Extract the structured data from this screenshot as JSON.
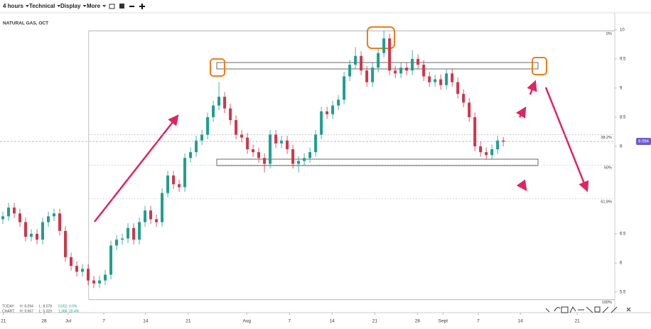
{
  "toolbar": {
    "items": [
      "4 hours",
      "Technical",
      "Display",
      "More"
    ]
  },
  "chart_data": {
    "type": "candlestick",
    "title": "NATURAL GAS, OCT",
    "ohlc": [
      [
        6.75,
        6.88,
        6.67,
        6.8
      ],
      [
        6.8,
        7.03,
        6.72,
        6.95
      ],
      [
        6.95,
        7.03,
        6.77,
        6.85
      ],
      [
        6.85,
        6.93,
        6.62,
        6.7
      ],
      [
        6.7,
        6.78,
        6.37,
        6.45
      ],
      [
        6.45,
        6.58,
        6.37,
        6.5
      ],
      [
        6.5,
        6.58,
        6.32,
        6.4
      ],
      [
        6.4,
        6.78,
        6.32,
        6.7
      ],
      [
        6.7,
        6.88,
        6.62,
        6.8
      ],
      [
        6.8,
        6.93,
        6.72,
        6.85
      ],
      [
        6.85,
        6.93,
        6.47,
        6.55
      ],
      [
        6.55,
        6.63,
        6.02,
        6.1
      ],
      [
        6.1,
        6.18,
        5.87,
        5.95
      ],
      [
        5.95,
        6.03,
        5.77,
        5.85
      ],
      [
        5.85,
        5.98,
        5.77,
        5.9
      ],
      [
        5.9,
        5.98,
        5.62,
        5.7
      ],
      [
        5.7,
        5.78,
        5.57,
        5.65
      ],
      [
        5.65,
        5.78,
        5.57,
        5.7
      ],
      [
        5.7,
        5.88,
        5.62,
        5.8
      ],
      [
        5.8,
        6.38,
        5.72,
        6.3
      ],
      [
        6.3,
        6.48,
        6.22,
        6.4
      ],
      [
        6.4,
        6.5,
        6.32,
        6.42
      ],
      [
        6.42,
        6.68,
        6.34,
        6.6
      ],
      [
        6.6,
        6.68,
        6.32,
        6.4
      ],
      [
        6.4,
        6.78,
        6.32,
        6.7
      ],
      [
        6.7,
        6.98,
        6.62,
        6.9
      ],
      [
        6.9,
        6.98,
        6.67,
        6.75
      ],
      [
        6.75,
        6.83,
        6.62,
        6.7
      ],
      [
        6.7,
        7.28,
        6.62,
        7.2
      ],
      [
        7.2,
        7.58,
        7.12,
        7.5
      ],
      [
        7.5,
        7.58,
        7.27,
        7.35
      ],
      [
        7.35,
        7.43,
        7.22,
        7.3
      ],
      [
        7.3,
        7.88,
        7.22,
        7.8
      ],
      [
        7.8,
        7.98,
        7.72,
        7.9
      ],
      [
        7.9,
        8.18,
        7.82,
        8.1
      ],
      [
        8.1,
        8.28,
        8.02,
        8.2
      ],
      [
        8.2,
        8.58,
        8.12,
        8.5
      ],
      [
        8.5,
        8.78,
        8.42,
        8.7
      ],
      [
        8.7,
        9.1,
        8.62,
        8.85
      ],
      [
        8.85,
        8.93,
        8.57,
        8.65
      ],
      [
        8.65,
        8.73,
        8.37,
        8.45
      ],
      [
        8.45,
        8.53,
        8.12,
        8.2
      ],
      [
        8.2,
        8.28,
        8.07,
        8.15
      ],
      [
        8.15,
        8.23,
        7.87,
        7.95
      ],
      [
        7.95,
        8.03,
        7.82,
        7.9
      ],
      [
        7.9,
        7.98,
        7.72,
        7.8
      ],
      [
        7.8,
        7.88,
        7.55,
        7.7
      ],
      [
        7.7,
        8.28,
        7.62,
        8.2
      ],
      [
        8.2,
        8.28,
        7.97,
        8.05
      ],
      [
        8.05,
        8.18,
        7.97,
        8.1
      ],
      [
        8.1,
        8.18,
        7.87,
        7.95
      ],
      [
        7.95,
        8.03,
        7.62,
        7.7
      ],
      [
        7.7,
        7.83,
        7.55,
        7.75
      ],
      [
        7.75,
        7.88,
        7.67,
        7.8
      ],
      [
        7.8,
        7.98,
        7.72,
        7.9
      ],
      [
        7.9,
        8.28,
        7.82,
        8.2
      ],
      [
        8.2,
        8.68,
        8.12,
        8.6
      ],
      [
        8.6,
        8.68,
        8.47,
        8.55
      ],
      [
        8.55,
        8.78,
        8.47,
        8.7
      ],
      [
        8.7,
        8.88,
        8.62,
        8.8
      ],
      [
        8.8,
        9.28,
        8.72,
        9.2
      ],
      [
        9.2,
        9.48,
        9.12,
        9.4
      ],
      [
        9.4,
        9.7,
        9.32,
        9.55
      ],
      [
        9.55,
        9.63,
        9.22,
        9.3
      ],
      [
        9.3,
        9.38,
        9.02,
        9.1
      ],
      [
        9.1,
        9.43,
        9.02,
        9.35
      ],
      [
        9.35,
        9.68,
        9.27,
        9.6
      ],
      [
        9.6,
        9.98,
        9.52,
        9.85
      ],
      [
        9.85,
        9.93,
        9.22,
        9.3
      ],
      [
        9.3,
        9.38,
        9.17,
        9.25
      ],
      [
        9.25,
        9.43,
        9.17,
        9.35
      ],
      [
        9.35,
        9.43,
        9.22,
        9.3
      ],
      [
        9.3,
        9.65,
        9.22,
        9.5
      ],
      [
        9.5,
        9.58,
        9.32,
        9.4
      ],
      [
        9.4,
        9.48,
        9.12,
        9.2
      ],
      [
        9.2,
        9.28,
        9.02,
        9.1
      ],
      [
        9.1,
        9.23,
        9.02,
        9.15
      ],
      [
        9.15,
        9.23,
        8.97,
        9.05
      ],
      [
        9.05,
        9.33,
        8.97,
        9.25
      ],
      [
        9.25,
        9.33,
        9.02,
        9.1
      ],
      [
        9.1,
        9.18,
        8.82,
        8.9
      ],
      [
        8.9,
        8.98,
        8.67,
        8.75
      ],
      [
        8.75,
        8.83,
        8.42,
        8.5
      ],
      [
        8.5,
        8.58,
        7.92,
        8.0
      ],
      [
        8.0,
        8.08,
        7.82,
        7.9
      ],
      [
        7.9,
        7.98,
        7.77,
        7.85
      ],
      [
        7.85,
        8.03,
        7.77,
        7.95
      ],
      [
        7.95,
        8.18,
        7.87,
        8.1
      ],
      [
        8.1,
        8.16,
        8.0,
        8.08
      ]
    ],
    "up_color": "#1f9e8f",
    "down_color": "#d0354a",
    "xlim": [
      -0.5,
      107.6
    ],
    "xticks": [
      {
        "value": 0.1,
        "label": "21"
      },
      {
        "value": 7.25,
        "label": "28"
      },
      {
        "value": 11.5,
        "label": "Jul"
      },
      {
        "value": 17.75,
        "label": "7"
      },
      {
        "value": 25.1,
        "label": "14"
      },
      {
        "value": 32.6,
        "label": "21"
      },
      {
        "value": 42.9,
        "label": "Aug"
      },
      {
        "value": 50.4,
        "label": "7"
      },
      {
        "value": 57.9,
        "label": "14"
      },
      {
        "value": 65.4,
        "label": "21"
      },
      {
        "value": 72.9,
        "label": "28"
      },
      {
        "value": 77.4,
        "label": "Sept"
      },
      {
        "value": 83.6,
        "label": "7"
      },
      {
        "value": 91,
        "label": "14"
      },
      {
        "value": 101,
        "label": "21"
      }
    ],
    "ylim": [
      5.27,
      10.29
    ],
    "yticks": [
      10,
      9.5,
      9,
      8.5,
      8,
      6.5,
      6,
      5.5
    ],
    "grid": false,
    "current_price": 8.084,
    "fib_start": 15.1,
    "fib_levels": [
      {
        "value": 9.98,
        "label": "0%"
      },
      {
        "value": 8.2,
        "label": "38.2%"
      },
      {
        "value": 7.68,
        "label": "50%"
      },
      {
        "value": 7.1,
        "label": "61.8%"
      },
      {
        "value": 5.37,
        "label": "100%"
      }
    ],
    "info": [
      [
        "TODAY:",
        "H: 8.094",
        "L: 8.078",
        "0.052",
        "0.0%"
      ],
      [
        "CHART:",
        "H: 9.967",
        "L: 5.329",
        "1.368",
        "20.4%"
      ]
    ]
  }
}
